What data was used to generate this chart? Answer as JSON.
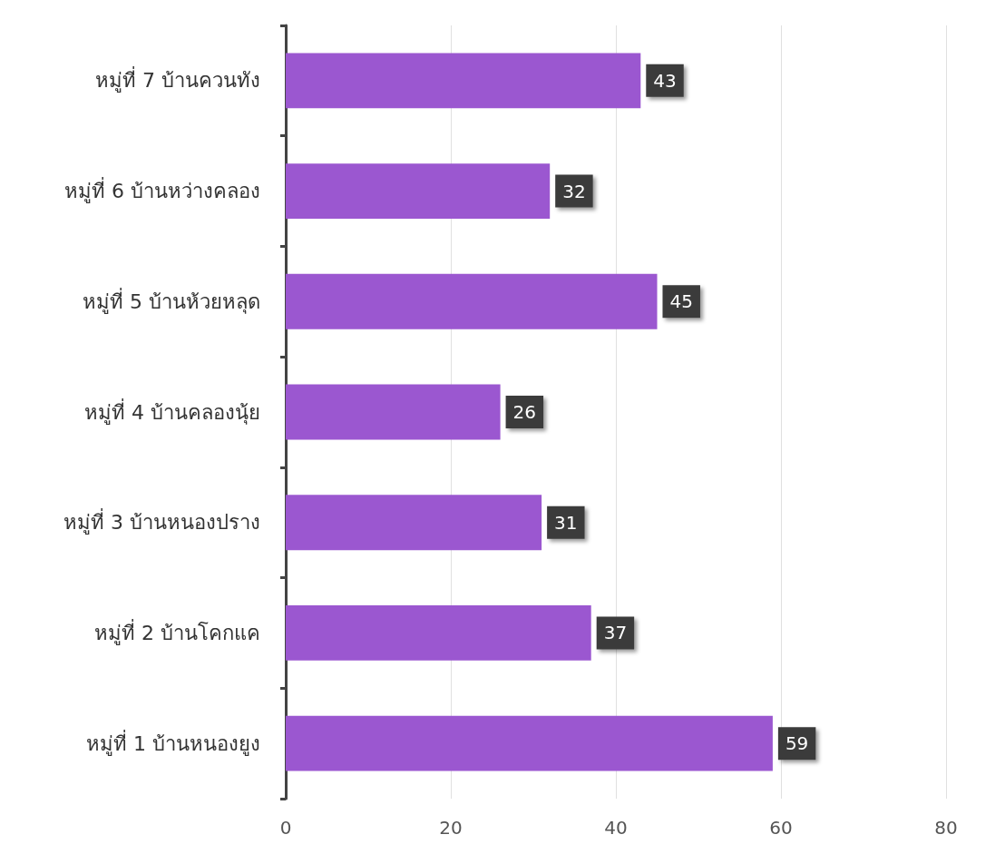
{
  "chart_data": {
    "type": "bar",
    "orientation": "horizontal",
    "categories": [
      "หมู่ที่ 7 บ้านควนทัง",
      "หมู่ที่ 6 บ้านหว่างคลอง",
      "หมู่ที่ 5 บ้านห้วยหลุด",
      "หมู่ที่ 4 บ้านคลองนุ้ย",
      "หมู่ที่ 3 บ้านหนองปราง",
      "หมู่ที่ 2 บ้านโคกแค",
      "หมู่ที่ 1 บ้านหนองยูง"
    ],
    "values": [
      43,
      32,
      45,
      26,
      31,
      37,
      59
    ],
    "color": "#9b57d0",
    "xlim": [
      0,
      80
    ],
    "xticks": [
      0,
      20,
      40,
      60,
      80
    ],
    "grid": "x",
    "data_labels": true
  }
}
